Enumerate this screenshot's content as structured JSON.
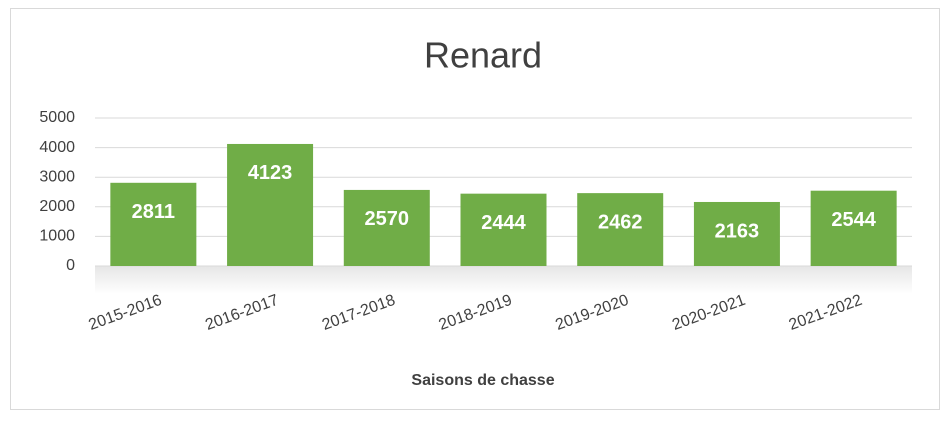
{
  "chart_data": {
    "type": "bar",
    "title": "Renard",
    "x_label": "Saisons de chasse",
    "categories": [
      "2015-2016",
      "2016-2017",
      "2017-2018",
      "2018-2019",
      "2019-2020",
      "2020-2021",
      "2021-2022"
    ],
    "values": [
      2811,
      4123,
      2570,
      2444,
      2462,
      2163,
      2544
    ],
    "color": "#70ad47",
    "ylim": [
      0,
      5000
    ],
    "yticks": [
      0,
      1000,
      2000,
      3000,
      4000,
      5000
    ],
    "grid": true
  }
}
